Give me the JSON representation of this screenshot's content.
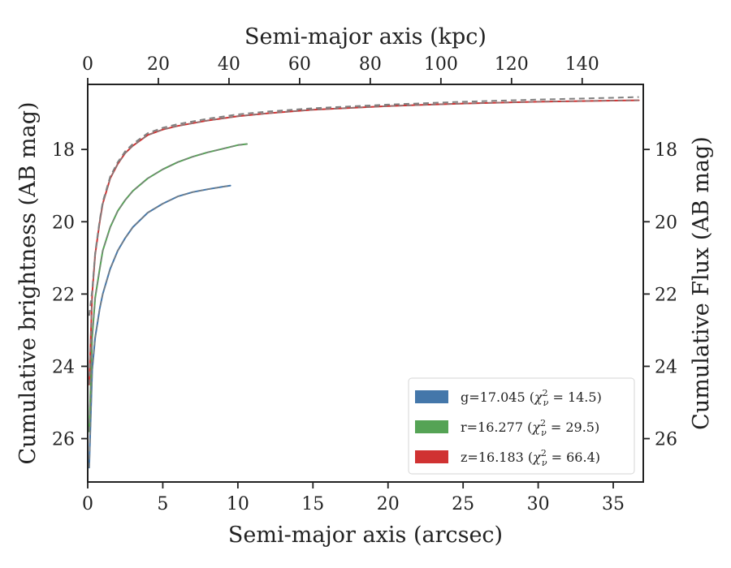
{
  "chart_data": {
    "type": "line",
    "xlabel": "Semi-major axis (arcsec)",
    "xlabel_top": "Semi-major axis (kpc)",
    "ylabel": "Cumulative brightness (AB mag)",
    "ylabel_right": "Cumulative Flux (AB mag)",
    "xlim": [
      0,
      37.0
    ],
    "xlim_top": [
      0,
      157.3
    ],
    "ylim": [
      27.2,
      16.2
    ],
    "y_inverted": true,
    "xticks": [
      "0",
      "5",
      "10",
      "15",
      "20",
      "25",
      "30",
      "35"
    ],
    "xticks_top": [
      "0",
      "20",
      "40",
      "60",
      "80",
      "100",
      "120",
      "140"
    ],
    "yticks": [
      "18",
      "20",
      "22",
      "24",
      "26"
    ],
    "grid": false,
    "legend_position": "lower-right",
    "colors": {
      "g": "#4477aa",
      "r": "#55a355",
      "z": "#d03232",
      "model": "#808080"
    },
    "series": [
      {
        "name": "g=17.045 (χ²ν = 14.5)",
        "label_main": "g=17.045 (",
        "chi_symbol": "χ",
        "chi_sup": "2",
        "chi_sub": "ν",
        "label_tail": " = 14.5)",
        "color": "#4477aa",
        "x": [
          0.1,
          0.3,
          0.5,
          0.8,
          1.0,
          1.5,
          2.0,
          2.5,
          3.0,
          4.0,
          5.0,
          6.0,
          7.0,
          8.0,
          9.0,
          9.5
        ],
        "y": [
          26.8,
          24.1,
          23.2,
          22.4,
          22.0,
          21.3,
          20.8,
          20.45,
          20.15,
          19.75,
          19.5,
          19.3,
          19.18,
          19.1,
          19.03,
          19.0
        ]
      },
      {
        "name": "r=16.277 (χ²ν = 29.5)",
        "label_main": "r=16.277 (",
        "chi_symbol": "χ",
        "chi_sup": "2",
        "chi_sub": "ν",
        "label_tail": " = 29.5)",
        "color": "#55a355",
        "x": [
          0.1,
          0.3,
          0.5,
          0.8,
          1.0,
          1.5,
          2.0,
          2.5,
          3.0,
          4.0,
          5.0,
          6.0,
          7.0,
          8.0,
          9.0,
          10.0,
          10.6
        ],
        "y": [
          25.8,
          23.2,
          22.1,
          21.3,
          20.8,
          20.15,
          19.7,
          19.4,
          19.15,
          18.8,
          18.55,
          18.35,
          18.2,
          18.08,
          17.98,
          17.88,
          17.85
        ]
      },
      {
        "name": "z=16.183 (χ²ν = 66.4)",
        "label_main": "z=16.183 (",
        "chi_symbol": "χ",
        "chi_sup": "2",
        "chi_sub": "ν",
        "label_tail": " = 66.4)",
        "color": "#d03232",
        "x": [
          0.1,
          0.3,
          0.5,
          0.8,
          1.0,
          1.5,
          2.0,
          2.5,
          3.0,
          4.0,
          5.0,
          6.0,
          8.0,
          10.0,
          12.0,
          15.0,
          20.0,
          25.0,
          30.0,
          35.0,
          36.7
        ],
        "y": [
          24.5,
          22.0,
          20.9,
          20.0,
          19.5,
          18.8,
          18.4,
          18.1,
          17.9,
          17.6,
          17.45,
          17.35,
          17.2,
          17.08,
          17.0,
          16.9,
          16.8,
          16.73,
          16.68,
          16.65,
          16.64
        ]
      }
    ],
    "model_series": {
      "x": [
        0.1,
        0.3,
        0.5,
        0.8,
        1.0,
        1.5,
        2.0,
        2.5,
        3.0,
        4.0,
        5.0,
        6.0,
        8.0,
        10.0,
        12.0,
        15.0,
        20.0,
        25.0,
        30.0,
        35.0,
        36.7
      ],
      "y": [
        22.6,
        21.9,
        20.85,
        19.95,
        19.45,
        18.75,
        18.35,
        18.05,
        17.85,
        17.55,
        17.4,
        17.3,
        17.15,
        17.03,
        16.95,
        16.86,
        16.76,
        16.68,
        16.62,
        16.57,
        16.55
      ]
    }
  }
}
